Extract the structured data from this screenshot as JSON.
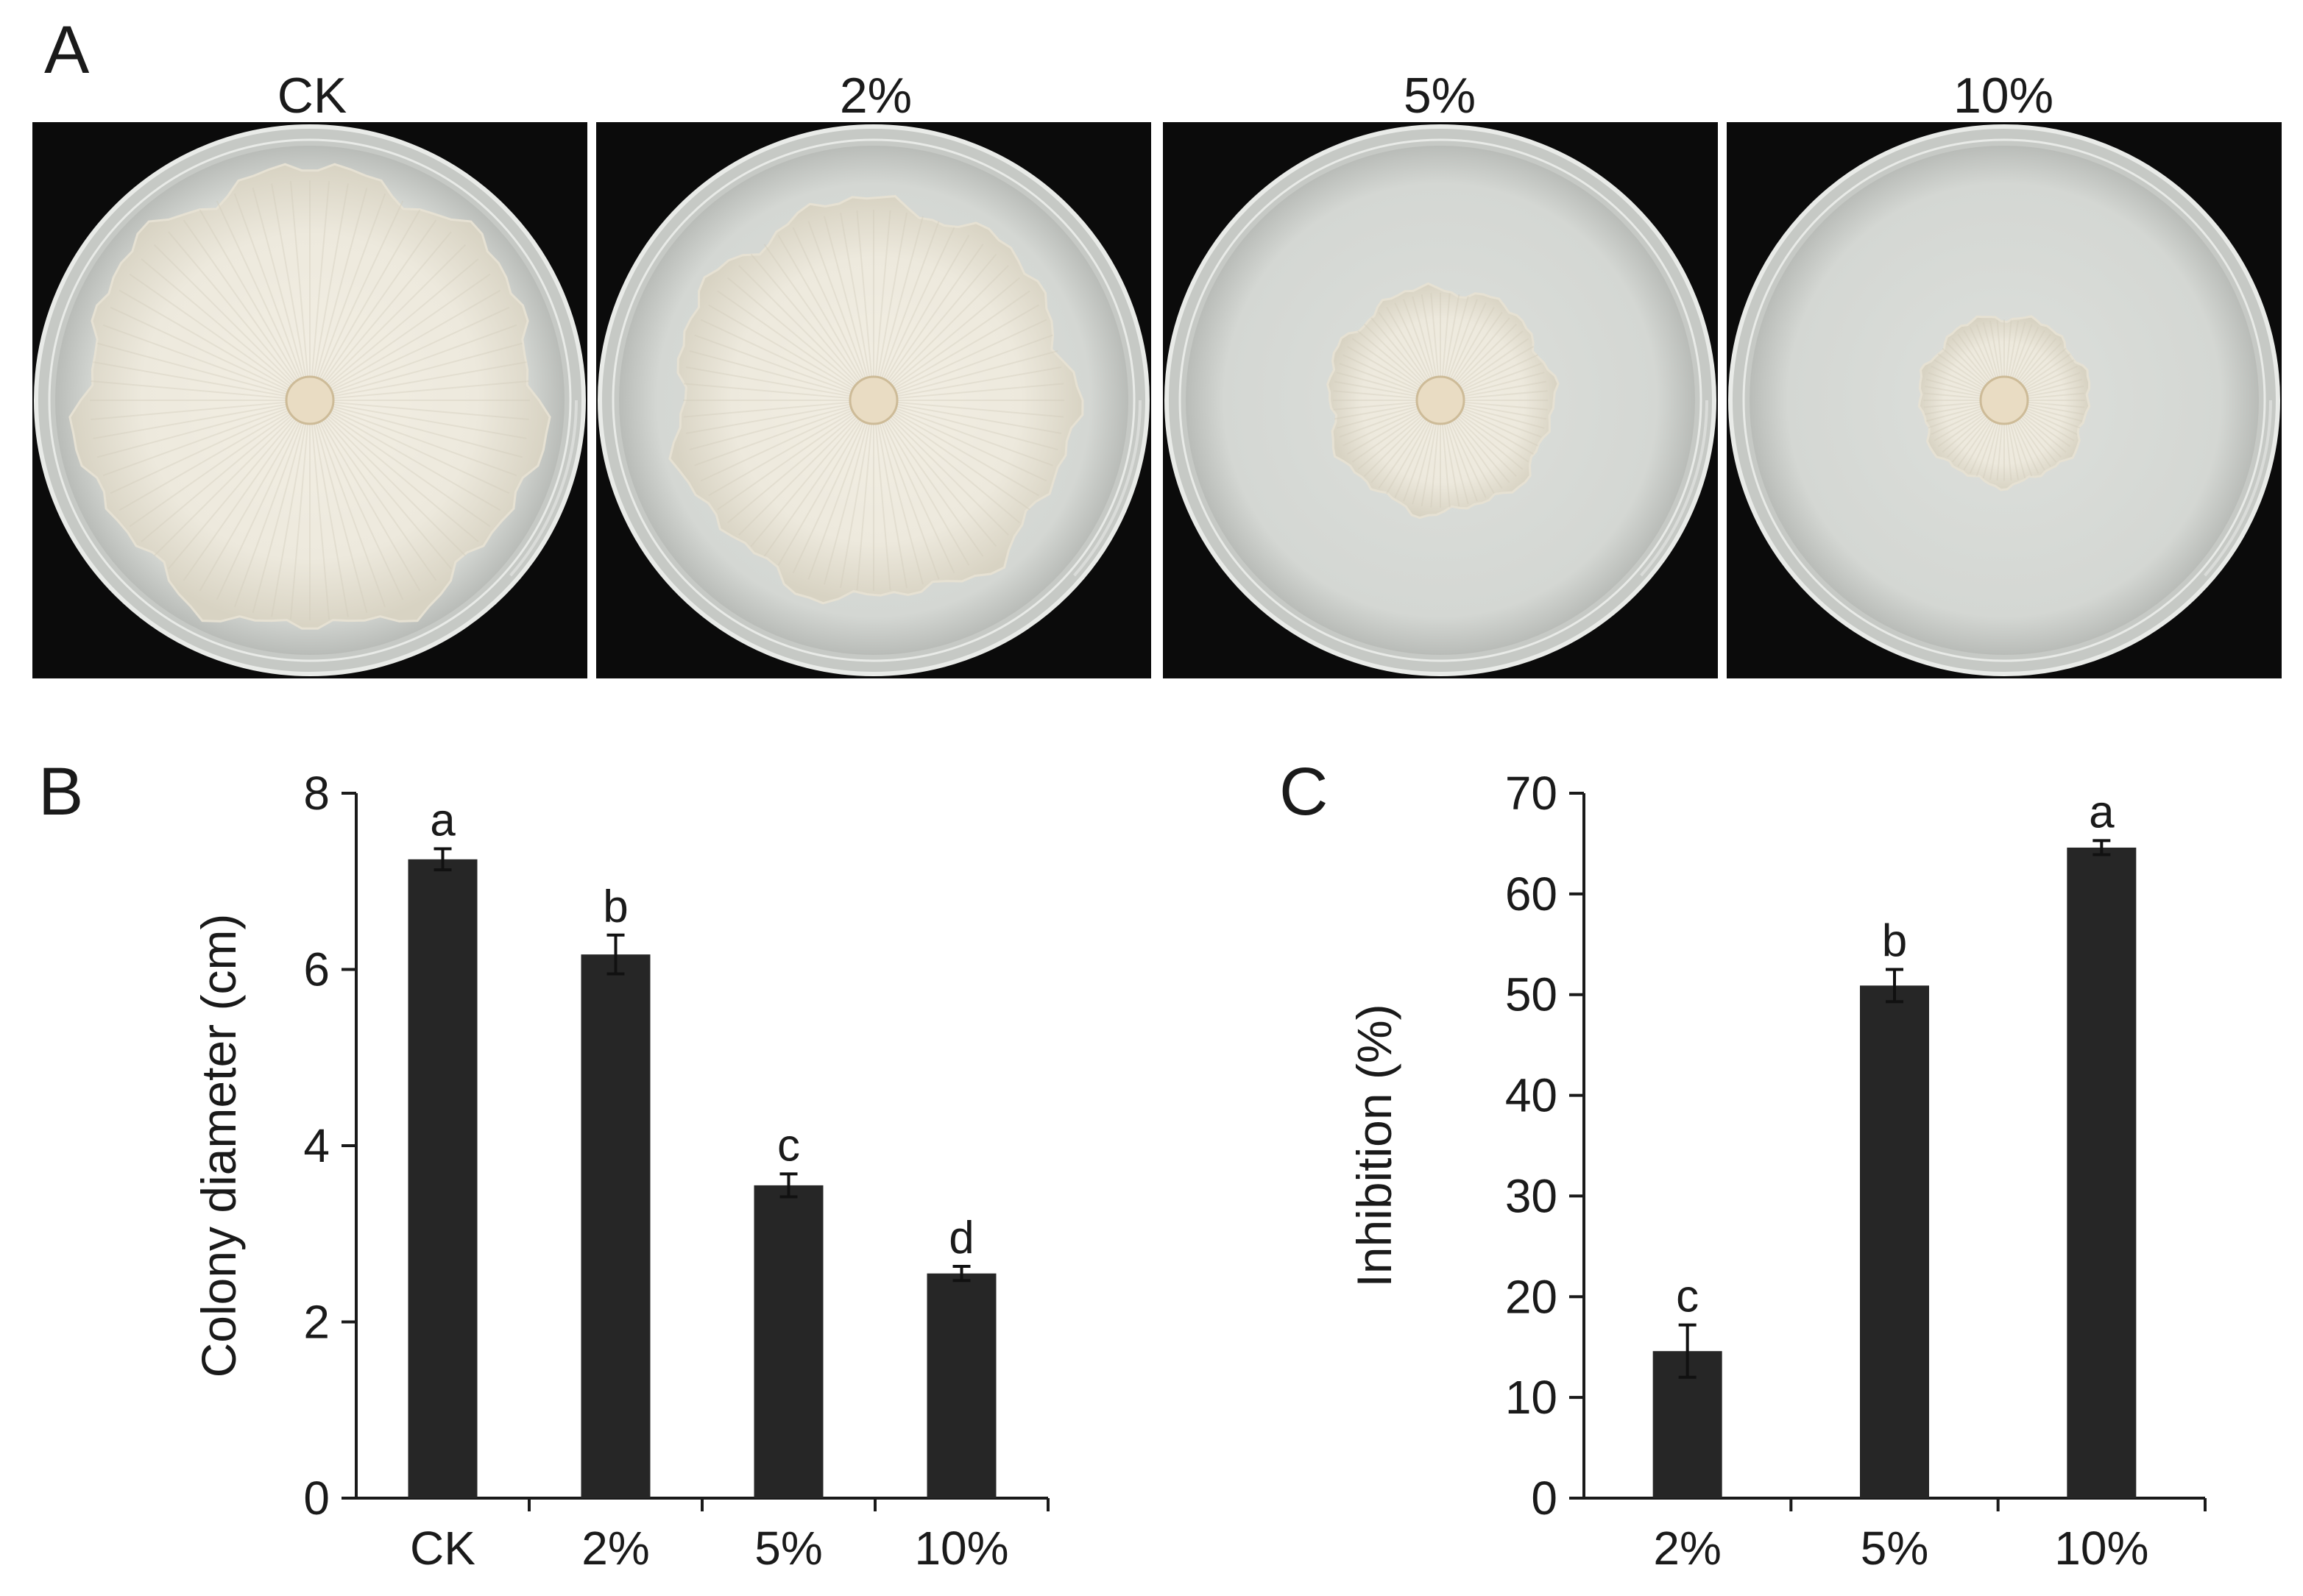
{
  "panels": {
    "a_letter": "A",
    "b_letter": "B",
    "c_letter": "C"
  },
  "plates": [
    {
      "label": "CK",
      "colony_fraction": 0.9
    },
    {
      "label": "2%",
      "colony_fraction": 0.78
    },
    {
      "label": "5%",
      "colony_fraction": 0.44
    },
    {
      "label": "10%",
      "colony_fraction": 0.33
    }
  ],
  "colors": {
    "bar": "#262626",
    "agar": "#d4d7d3",
    "mycelium": "#ede9dd",
    "plate_background": "#0b0b0b"
  },
  "chart_data": [
    {
      "type": "bar",
      "title": "",
      "xlabel": "",
      "ylabel": "Colony diameter (cm)",
      "categories": [
        "CK",
        "2%",
        "5%",
        "10%"
      ],
      "values": [
        7.25,
        6.17,
        3.55,
        2.55
      ],
      "errors": [
        0.12,
        0.22,
        0.13,
        0.08
      ],
      "significance": [
        "a",
        "b",
        "c",
        "d"
      ],
      "ylim": [
        0,
        8
      ],
      "yticks": [
        0,
        2,
        4,
        6,
        8
      ],
      "grid": false,
      "legend": "none"
    },
    {
      "type": "bar",
      "title": "",
      "xlabel": "",
      "ylabel": "Inhibition (%)",
      "categories": [
        "2%",
        "5%",
        "10%"
      ],
      "values": [
        14.6,
        50.9,
        64.6
      ],
      "errors": [
        2.6,
        1.6,
        0.7
      ],
      "significance": [
        "c",
        "b",
        "a"
      ],
      "ylim": [
        0,
        70
      ],
      "yticks": [
        0,
        10,
        20,
        30,
        40,
        50,
        60,
        70
      ],
      "grid": false,
      "legend": "none"
    }
  ]
}
